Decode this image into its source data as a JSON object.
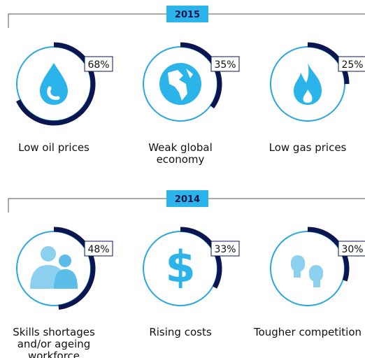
{
  "chart_data": [
    {
      "type": "donut",
      "title": "2015",
      "categories": [
        "Low oil prices",
        "Weak global economy",
        "Low gas prices"
      ],
      "values": [
        68,
        35,
        25
      ],
      "value_labels": [
        "68%",
        "35%",
        "25%"
      ],
      "color": "#0b1550",
      "track_color": "#29a8e0",
      "ylim": [
        0,
        100
      ]
    },
    {
      "type": "donut",
      "title": "2014",
      "categories": [
        "Skills shortages and/or ageing workforce",
        "Rising costs",
        "Tougher competition"
      ],
      "values": [
        48,
        33,
        30
      ],
      "value_labels": [
        "48%",
        "33%",
        "30%"
      ],
      "color": "#0b1550",
      "track_color": "#29a8e0",
      "ylim": [
        0,
        100
      ]
    }
  ]
}
